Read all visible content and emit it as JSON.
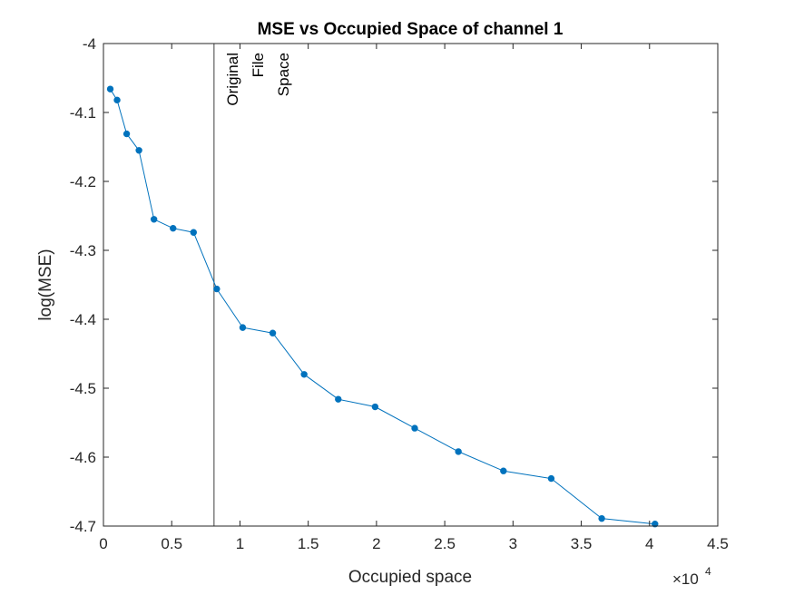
{
  "chart_data": {
    "type": "line",
    "title": "MSE vs Occupied Space of channel 1",
    "xlabel": "Occupied space",
    "ylabel": "log(MSE)",
    "x_exponent_base": "×10",
    "x_exponent_power": "4",
    "x_exponent": 4,
    "xlim": [
      0,
      4.5
    ],
    "ylim": [
      -4.7,
      -4.0
    ],
    "xticks": [
      0,
      0.5,
      1,
      1.5,
      2,
      2.5,
      3,
      3.5,
      4,
      4.5
    ],
    "xtick_labels": [
      "0",
      "0.5",
      "1",
      "1.5",
      "2",
      "2.5",
      "3",
      "3.5",
      "4",
      "4.5"
    ],
    "yticks": [
      -4.0,
      -4.1,
      -4.2,
      -4.3,
      -4.4,
      -4.5,
      -4.6,
      -4.7
    ],
    "ytick_labels": [
      "-4",
      "-4.1",
      "-4.2",
      "-4.3",
      "-4.4",
      "-4.5",
      "-4.6",
      "-4.7"
    ],
    "grid": false,
    "series": [
      {
        "color": "#0072BD",
        "marker": "dot",
        "x": [
          0.05,
          0.1,
          0.17,
          0.26,
          0.37,
          0.51,
          0.66,
          0.83,
          1.02,
          1.24,
          1.47,
          1.72,
          1.99,
          2.28,
          2.6,
          2.93,
          3.28,
          3.65,
          4.04
        ],
        "y": [
          -4.066,
          -4.082,
          -4.131,
          -4.155,
          -4.255,
          -4.268,
          -4.274,
          -4.356,
          -4.412,
          -4.42,
          -4.48,
          -4.516,
          -4.527,
          -4.558,
          -4.592,
          -4.62,
          -4.631,
          -4.689,
          -4.697
        ]
      }
    ],
    "annotation": {
      "x": 0.81,
      "color": "#404040",
      "lines": [
        "Original",
        "File",
        "Space"
      ]
    }
  }
}
